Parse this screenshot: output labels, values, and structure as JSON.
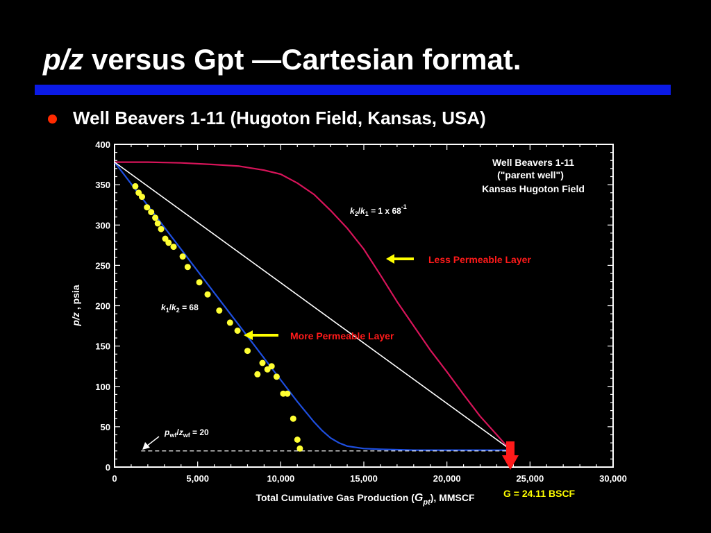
{
  "slide": {
    "title_italic": "p/z",
    "title_rest": " versus Gpt —Cartesian format.",
    "bullet": "Well Beavers 1-11 (Hugoton Field, Kansas, USA)"
  },
  "chart_data": {
    "type": "scatter",
    "xlim": [
      0,
      30000
    ],
    "ylim": [
      0,
      400
    ],
    "x_ticks": [
      0,
      5000,
      10000,
      15000,
      20000,
      25000,
      30000
    ],
    "x_tick_labels": [
      "0",
      "5,000",
      "10,000",
      "15,000",
      "20,000",
      "25,000",
      "30,000"
    ],
    "y_ticks": [
      0,
      50,
      100,
      150,
      200,
      250,
      300,
      350,
      400
    ],
    "y_tick_labels": [
      "0",
      "50",
      "100",
      "150",
      "200",
      "250",
      "300",
      "350",
      "400"
    ],
    "xlabel": {
      "pre": "Total Cumulative Gas Production (",
      "var": "G",
      "sub": "pt",
      "post": "), MMSCF"
    },
    "ylabel": {
      "var": "p/z",
      "post": " , psia"
    },
    "grid": false,
    "points": [
      [
        1250,
        348
      ],
      [
        1450,
        340
      ],
      [
        1650,
        335
      ],
      [
        1950,
        322
      ],
      [
        2200,
        316
      ],
      [
        2450,
        309
      ],
      [
        2600,
        302
      ],
      [
        2800,
        295
      ],
      [
        3050,
        283
      ],
      [
        3250,
        278
      ],
      [
        3550,
        273
      ],
      [
        4100,
        261
      ],
      [
        4400,
        248
      ],
      [
        5100,
        229
      ],
      [
        5600,
        214
      ],
      [
        6300,
        194
      ],
      [
        6950,
        179
      ],
      [
        7400,
        169
      ],
      [
        8000,
        144
      ],
      [
        8600,
        115
      ],
      [
        8900,
        129
      ],
      [
        9200,
        121
      ],
      [
        9450,
        125
      ],
      [
        9750,
        112
      ],
      [
        10150,
        91
      ],
      [
        10400,
        91
      ],
      [
        10750,
        60
      ],
      [
        11000,
        34
      ],
      [
        11150,
        23
      ]
    ],
    "series": [
      {
        "name": "k1/k2 = 68",
        "color": "#1e4fe0",
        "points": [
          [
            0,
            378
          ],
          [
            2000,
            324
          ],
          [
            4000,
            270
          ],
          [
            6000,
            216
          ],
          [
            8000,
            162
          ],
          [
            10000,
            108
          ],
          [
            11000,
            81
          ],
          [
            12000,
            56
          ],
          [
            12500,
            45
          ],
          [
            13000,
            36
          ],
          [
            13500,
            30
          ],
          [
            14000,
            26
          ],
          [
            15000,
            23
          ],
          [
            16000,
            22
          ],
          [
            18000,
            21
          ],
          [
            20000,
            21
          ],
          [
            23600,
            21
          ]
        ]
      },
      {
        "name": "k2/k1 = 1 x 68-1",
        "color": "#d8145a",
        "points": [
          [
            0,
            378
          ],
          [
            2000,
            378
          ],
          [
            4000,
            377
          ],
          [
            6000,
            375
          ],
          [
            7500,
            373
          ],
          [
            9000,
            368
          ],
          [
            10000,
            363
          ],
          [
            11000,
            352
          ],
          [
            12000,
            338
          ],
          [
            13000,
            318
          ],
          [
            14000,
            296
          ],
          [
            15000,
            270
          ],
          [
            16000,
            238
          ],
          [
            17000,
            205
          ],
          [
            18000,
            175
          ],
          [
            19000,
            145
          ],
          [
            20000,
            118
          ],
          [
            21000,
            90
          ],
          [
            22000,
            63
          ],
          [
            23000,
            40
          ],
          [
            23600,
            26
          ]
        ]
      },
      {
        "name": "parent well straight line",
        "color": "#ffffff",
        "points": [
          [
            0,
            378
          ],
          [
            23600,
            25
          ]
        ]
      }
    ],
    "pwf_line": {
      "y": 20,
      "x_start": 1600,
      "x_end": 23600
    },
    "annotations": {
      "legend_line1": "Well Beavers 1-11",
      "legend_line2": "(\"parent well\")",
      "legend_line3": "Kansas Hugoton Field",
      "ratio_k2k1": {
        "k2": "k",
        "k2_sub": "2",
        "slash": "/",
        "k1": "k",
        "k1_sub": "1",
        "eq": " =  1 x 68",
        "sup": "-1"
      },
      "ratio_k1k2": {
        "k1": "k",
        "k1_sub": "1",
        "slash": "/",
        "k2": "k",
        "k2_sub": "2",
        "eq": " = 68"
      },
      "pwf": {
        "p": "p",
        "p_sub": "wf",
        "slash": "/",
        "z": "z",
        "z_sub": "wf",
        "eq": " = 20"
      },
      "less_label": "Less  Permeable Layer",
      "more_label": "More  Permeable Layer",
      "g_label": "G = 24.11 BSCF"
    },
    "colors": {
      "axis": "#ffffff",
      "points": "#ffff33",
      "arrow_yellow": "#ffff00",
      "label_red": "#ff1a1a",
      "g_label": "#ffff00",
      "g_arrow": "#ff1a1a"
    },
    "g_value": 24110
  }
}
